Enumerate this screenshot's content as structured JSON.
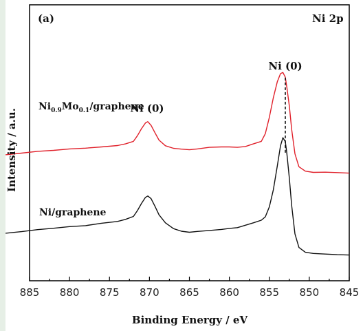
{
  "chart_data": {
    "type": "line",
    "panel_label": "(a)",
    "region_label": "Ni 2p",
    "xlabel": "Binding Energy / eV",
    "ylabel": "Intensity / a.u.",
    "xlim": [
      885,
      845
    ],
    "x_ticks": [
      885,
      880,
      875,
      870,
      865,
      860,
      855,
      850,
      845
    ],
    "ylim": [
      0,
      1
    ],
    "y_ticks_shown": false,
    "guide_line_x": 853,
    "annotations": [
      {
        "text": "Ni (0)",
        "x": 870.3,
        "y": 0.81
      },
      {
        "text": "Ni (0)",
        "x": 853.0,
        "y": 1.02
      }
    ],
    "series": [
      {
        "name_main": "Ni",
        "name_sub1": "0.9",
        "name_mid": "Mo",
        "name_sub2": "0.1",
        "name_tail": "/graphene",
        "color": "#e0202a",
        "x": [
          888.0,
          886.0,
          884.0,
          882.0,
          880.0,
          878.0,
          876.0,
          874.0,
          873.0,
          872.0,
          871.5,
          871.0,
          870.5,
          870.2,
          869.8,
          869.3,
          868.8,
          868.0,
          867.0,
          866.0,
          865.0,
          864.0,
          862.5,
          861.0,
          860.0,
          859.0,
          858.0,
          857.0,
          856.0,
          855.5,
          855.0,
          854.5,
          854.0,
          853.6,
          853.3,
          853.0,
          852.8,
          852.5,
          852.2,
          851.8,
          851.3,
          850.5,
          849.5,
          848.0,
          846.5,
          845.0
        ],
        "y": [
          0.595,
          0.603,
          0.612,
          0.617,
          0.624,
          0.628,
          0.634,
          0.641,
          0.649,
          0.662,
          0.69,
          0.725,
          0.754,
          0.76,
          0.742,
          0.704,
          0.668,
          0.64,
          0.627,
          0.623,
          0.62,
          0.624,
          0.632,
          0.634,
          0.634,
          0.632,
          0.636,
          0.649,
          0.662,
          0.7,
          0.782,
          0.88,
          0.96,
          1.0,
          1.006,
          0.982,
          0.93,
          0.84,
          0.72,
          0.6,
          0.535,
          0.513,
          0.507,
          0.508,
          0.506,
          0.503
        ]
      },
      {
        "name": "Ni/graphene",
        "color": "#111111",
        "x": [
          888.0,
          886.0,
          884.0,
          882.0,
          880.0,
          878.0,
          876.0,
          874.0,
          873.0,
          872.0,
          871.5,
          871.0,
          870.5,
          870.2,
          869.8,
          869.3,
          868.8,
          868.0,
          867.0,
          866.0,
          865.0,
          864.0,
          862.5,
          861.0,
          860.0,
          859.0,
          858.0,
          857.0,
          856.0,
          855.5,
          855.0,
          854.5,
          854.0,
          853.6,
          853.3,
          853.0,
          852.8,
          852.5,
          852.2,
          851.8,
          851.3,
          850.5,
          849.5,
          848.0,
          846.5,
          845.0
        ],
        "y": [
          0.203,
          0.211,
          0.221,
          0.228,
          0.236,
          0.241,
          0.253,
          0.262,
          0.272,
          0.287,
          0.316,
          0.352,
          0.382,
          0.389,
          0.376,
          0.337,
          0.295,
          0.255,
          0.226,
          0.213,
          0.208,
          0.212,
          0.217,
          0.222,
          0.227,
          0.231,
          0.243,
          0.255,
          0.268,
          0.285,
          0.335,
          0.42,
          0.54,
          0.64,
          0.68,
          0.66,
          0.6,
          0.48,
          0.34,
          0.2,
          0.132,
          0.108,
          0.102,
          0.099,
          0.096,
          0.094
        ]
      }
    ]
  }
}
